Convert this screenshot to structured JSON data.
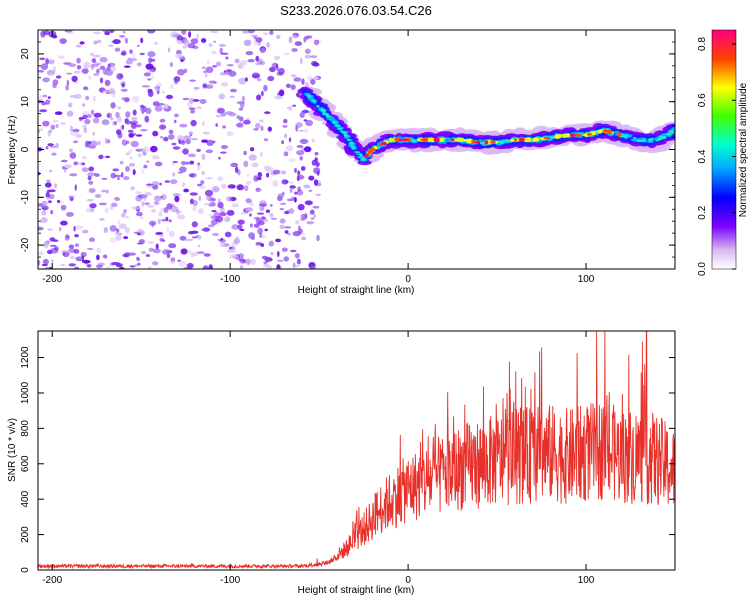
{
  "figure_title": "S233.2026.076.03.54.C26",
  "colorbar": {
    "label": "Normalized spectral amplitude",
    "range": [
      0.0,
      0.85
    ],
    "ticks": [
      "0.0",
      "0.2",
      "0.4",
      "0.6",
      "0.8"
    ],
    "ticks_values": [
      0.0,
      0.2,
      0.4,
      0.6,
      0.8
    ]
  },
  "chart_data": [
    {
      "type": "heatmap",
      "title": "",
      "xlabel": "Height of straight line (km)",
      "ylabel": "Frequency (Hz)",
      "xlim": [
        -208,
        150
      ],
      "ylim": [
        -25,
        25
      ],
      "xticks": [
        "-200",
        "-100",
        "0",
        "100"
      ],
      "xticks_values": [
        -200,
        -100,
        0,
        100
      ],
      "yticks": [
        "-20",
        "-10",
        "0",
        "10",
        "20"
      ],
      "yticks_values": [
        -20,
        -10,
        0,
        10,
        20
      ],
      "noise_region_x": [
        -208,
        -50
      ],
      "signal_track": {
        "x": [
          -58,
          -50,
          -45,
          -40,
          -35,
          -30,
          -25,
          -20,
          -15,
          -10,
          -5,
          0,
          10,
          20,
          30,
          40,
          50,
          60,
          70,
          80,
          90,
          100,
          110,
          120,
          130,
          140,
          150
        ],
        "freq": [
          12,
          9,
          7,
          5,
          3,
          0,
          -2,
          0,
          1,
          2,
          2,
          2,
          2,
          2,
          2,
          1.5,
          1.5,
          2,
          2,
          2.5,
          3,
          3,
          4,
          3,
          2,
          2,
          4
        ]
      }
    },
    {
      "type": "line",
      "title": "",
      "xlabel": "Height of straight line (km)",
      "ylabel": "SNR (10 * v/v)",
      "xlim": [
        -208,
        150
      ],
      "ylim": [
        0,
        1350
      ],
      "xticks": [
        "-200",
        "-100",
        "0",
        "100"
      ],
      "xticks_values": [
        -200,
        -100,
        0,
        100
      ],
      "yticks": [
        "0",
        "200",
        "400",
        "600",
        "800",
        "1000",
        "1200"
      ],
      "yticks_values": [
        0,
        200,
        400,
        600,
        800,
        1000,
        1200
      ],
      "series": [
        {
          "name": "SNR",
          "color": "#e8302a",
          "envelope_x": [
            -208,
            -60,
            -45,
            -35,
            -25,
            -15,
            -5,
            0,
            10,
            20,
            30,
            40,
            50,
            60,
            70,
            80,
            90,
            100,
            110,
            120,
            130,
            140,
            150
          ],
          "envelope_mean": [
            22,
            22,
            40,
            120,
            230,
            350,
            430,
            460,
            500,
            540,
            580,
            600,
            620,
            640,
            650,
            660,
            640,
            660,
            680,
            640,
            650,
            620,
            560
          ],
          "peaks": [
            {
              "x": 134,
              "y": 1350
            },
            {
              "x": 74,
              "y": 1235
            },
            {
              "x": 95,
              "y": 1225
            },
            {
              "x": 124,
              "y": 1215
            }
          ]
        }
      ]
    }
  ]
}
